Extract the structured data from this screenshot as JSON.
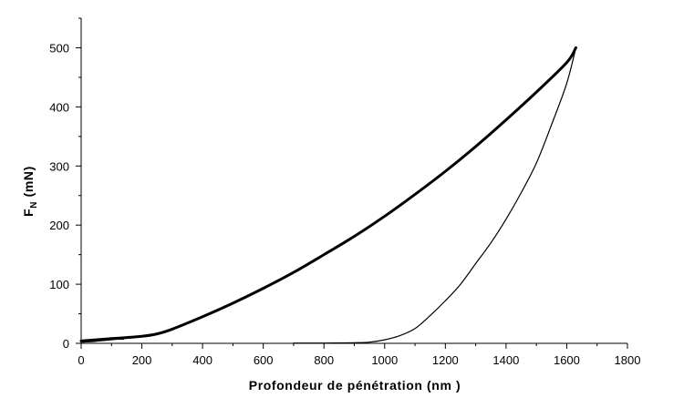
{
  "chart_data": {
    "type": "line",
    "title": "",
    "xlabel": "Profondeur de pénétration (nm )",
    "ylabel_main": "F",
    "ylabel_sub": "N",
    "ylabel_unit": " (mN)",
    "xlim": [
      0,
      1800
    ],
    "ylim": [
      0,
      550
    ],
    "x_ticks": [
      0,
      200,
      400,
      600,
      800,
      1000,
      1200,
      1400,
      1600,
      1800
    ],
    "y_ticks": [
      0,
      100,
      200,
      300,
      400,
      500
    ],
    "grid": false,
    "legend": "none",
    "line_color": "#000000",
    "series": [
      {
        "role": "loading",
        "x": [
          0,
          100,
          200,
          250,
          300,
          400,
          500,
          600,
          700,
          800,
          900,
          1000,
          1100,
          1200,
          1300,
          1400,
          1500,
          1600,
          1630
        ],
        "y": [
          4,
          8,
          12,
          16,
          24,
          45,
          68,
          93,
          120,
          150,
          181,
          215,
          252,
          291,
          333,
          378,
          425,
          475,
          500
        ]
      },
      {
        "role": "unloading",
        "x": [
          1630,
          1600,
          1550,
          1500,
          1450,
          1400,
          1350,
          1300,
          1250,
          1200,
          1150,
          1100,
          1050,
          1000,
          950,
          900,
          800,
          700
        ],
        "y": [
          500,
          440,
          370,
          305,
          255,
          210,
          170,
          135,
          100,
          72,
          47,
          25,
          13,
          6,
          2,
          1,
          0.5,
          0.5
        ]
      },
      {
        "role": "initial-contact",
        "x": [
          0,
          40,
          80,
          120,
          140
        ],
        "y": [
          2,
          3,
          5,
          7,
          7
        ]
      }
    ]
  }
}
